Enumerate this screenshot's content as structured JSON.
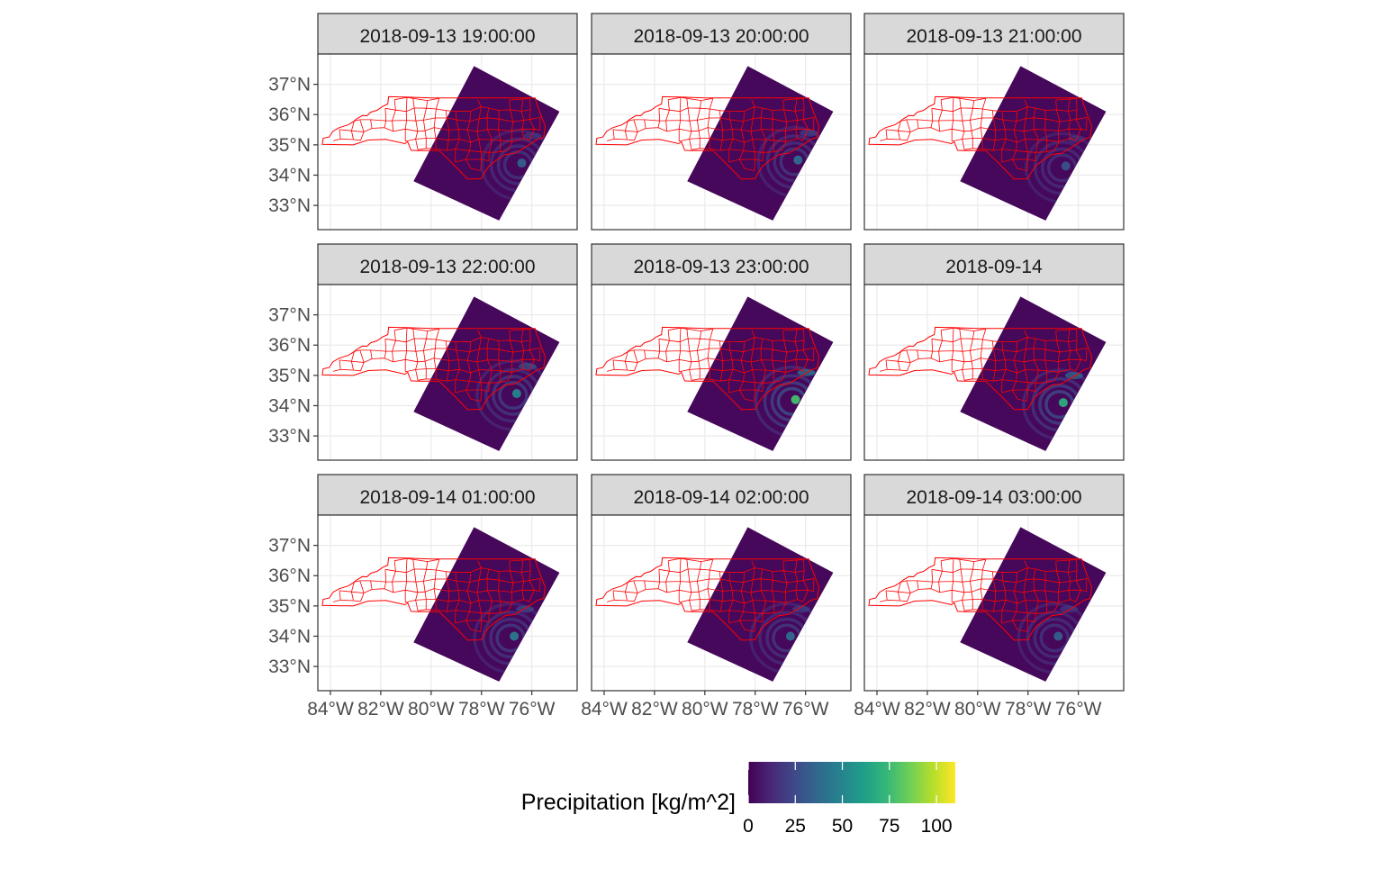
{
  "chart_data": {
    "type": "map",
    "facets": [
      "2018-09-13 19:00:00",
      "2018-09-13 20:00:00",
      "2018-09-13 21:00:00",
      "2018-09-13 22:00:00",
      "2018-09-13 23:00:00",
      "2018-09-14",
      "2018-09-14 01:00:00",
      "2018-09-14 02:00:00",
      "2018-09-14 03:00:00"
    ],
    "x_ticks": [
      "84°W",
      "82°W",
      "80°W",
      "78°W",
      "76°W"
    ],
    "x_tick_values": [
      -84,
      -82,
      -80,
      -78,
      -76
    ],
    "y_ticks": [
      "37°N",
      "36°N",
      "35°N",
      "34°N",
      "33°N"
    ],
    "y_tick_values": [
      37,
      36,
      35,
      34,
      33
    ],
    "xlim": [
      -84.5,
      -74.2
    ],
    "ylim": [
      32.2,
      38.0
    ],
    "grid": true,
    "boundary_color": "#ff0000",
    "legend": {
      "title": "Precipitation [kg/m^2]",
      "position": "bottom",
      "ticks": [
        "0",
        "25",
        "50",
        "75",
        "100"
      ],
      "tick_values": [
        0,
        25,
        50,
        75,
        100
      ],
      "range": [
        0,
        110
      ],
      "colors": [
        "#440154",
        "#482878",
        "#3e4989",
        "#31688e",
        "#26828e",
        "#1f9e89",
        "#35b779",
        "#6ece58",
        "#b5de2b",
        "#fde725"
      ]
    }
  }
}
